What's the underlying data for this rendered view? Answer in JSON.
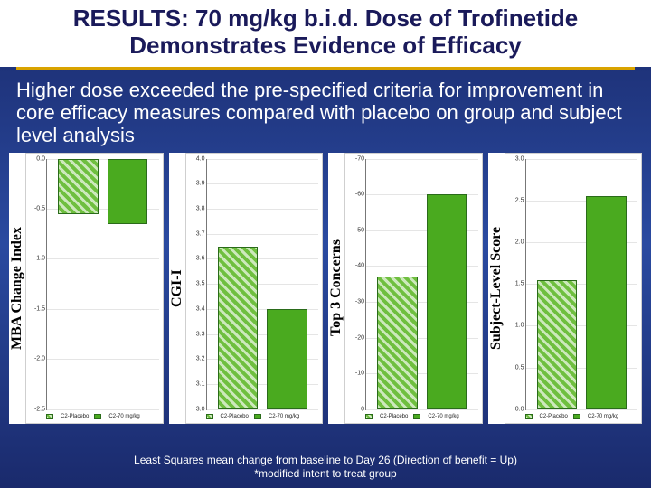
{
  "title": {
    "line1": "RESULTS: 70 mg/kg b.i.d. Dose of Trofinetide",
    "line2": "Demonstrates Evidence of Efficacy",
    "fontsize": 26,
    "color": "#1a1a5a",
    "bg": "#ffffff",
    "underline_color": "#d9a300"
  },
  "subtitle": {
    "text": "Higher dose  exceeded the pre-specified criteria for improvement in core efficacy measures compared with placebo on group and subject level analysis",
    "fontsize": 22,
    "color": "#ffffff"
  },
  "slide_bg_gradient": [
    "#1a2a6c",
    "#2a4aa0",
    "#1a2a6c"
  ],
  "legend_labels": {
    "placebo": "C2-Placebo",
    "drug": "C2-70 mg/kg"
  },
  "charts": [
    {
      "id": "mba",
      "ylabel": "MBA Change Index",
      "type": "bar",
      "direction": "down",
      "ylim": [
        -2.5,
        0
      ],
      "ticks": [
        -2.5,
        -2.0,
        -1.5,
        -1.0,
        -0.5,
        0.0
      ],
      "tick_labels": [
        "-2.5",
        "-2.0",
        "-1.5",
        "-1.0",
        "-0.5",
        "0.0"
      ],
      "values": {
        "placebo": -0.55,
        "drug": -0.65
      },
      "bar_colors": {
        "placebo_hatched": "#6fbf3f",
        "drug_solid": "#4aaa1f"
      },
      "grid_color": "#e5e5e5",
      "background_color": "#ffffff"
    },
    {
      "id": "cgii",
      "ylabel": "CGI-I",
      "type": "bar",
      "direction": "up",
      "ylim": [
        3.0,
        4.0
      ],
      "ticks": [
        3.0,
        3.1,
        3.2,
        3.3,
        3.4,
        3.5,
        3.6,
        3.7,
        3.8,
        3.9,
        4.0
      ],
      "tick_labels": [
        "3.0",
        "3.1",
        "3.2",
        "3.3",
        "3.4",
        "3.5",
        "3.6",
        "3.7",
        "3.8",
        "3.9",
        "4.0"
      ],
      "values": {
        "placebo": 3.65,
        "drug": 3.4
      },
      "bar_colors": {
        "placebo_hatched": "#6fbf3f",
        "drug_solid": "#4aaa1f"
      },
      "grid_color": "#e5e5e5",
      "background_color": "#ffffff"
    },
    {
      "id": "top3",
      "ylabel": "Top 3 Concerns",
      "type": "bar",
      "direction": "up",
      "ylim": [
        0,
        70
      ],
      "ticks": [
        0,
        10,
        20,
        30,
        40,
        50,
        60,
        70
      ],
      "tick_labels": [
        "0",
        "-10",
        "-20",
        "-30",
        "-40",
        "-50",
        "-60",
        "-70"
      ],
      "values": {
        "placebo": 37,
        "drug": 60
      },
      "bar_colors": {
        "placebo_hatched": "#6fbf3f",
        "drug_solid": "#4aaa1f"
      },
      "grid_color": "#e5e5e5",
      "background_color": "#ffffff"
    },
    {
      "id": "subject",
      "ylabel": "Subject-Level Score",
      "type": "bar",
      "direction": "up",
      "ylim": [
        0,
        3.0
      ],
      "ticks": [
        0.0,
        0.5,
        1.0,
        1.5,
        2.0,
        2.5,
        3.0
      ],
      "tick_labels": [
        "0.0",
        "0.5",
        "1.0",
        "1.5",
        "2.0",
        "2.5",
        "3.0"
      ],
      "values": {
        "placebo": 1.55,
        "drug": 2.55
      },
      "bar_colors": {
        "placebo_hatched": "#6fbf3f",
        "drug_solid": "#4aaa1f"
      },
      "grid_color": "#e5e5e5",
      "background_color": "#ffffff"
    }
  ],
  "footnote": {
    "line1": "Least Squares mean change from baseline to Day 26 (Direction of benefit = Up)",
    "line2": "*modified intent to treat group",
    "fontsize": 12,
    "color": "#ffffff"
  },
  "typography": {
    "title_font": "Arial",
    "ylabel_font": "Times New Roman",
    "ylabel_fontsize": 16,
    "tick_fontsize": 7,
    "legend_fontsize": 6
  }
}
